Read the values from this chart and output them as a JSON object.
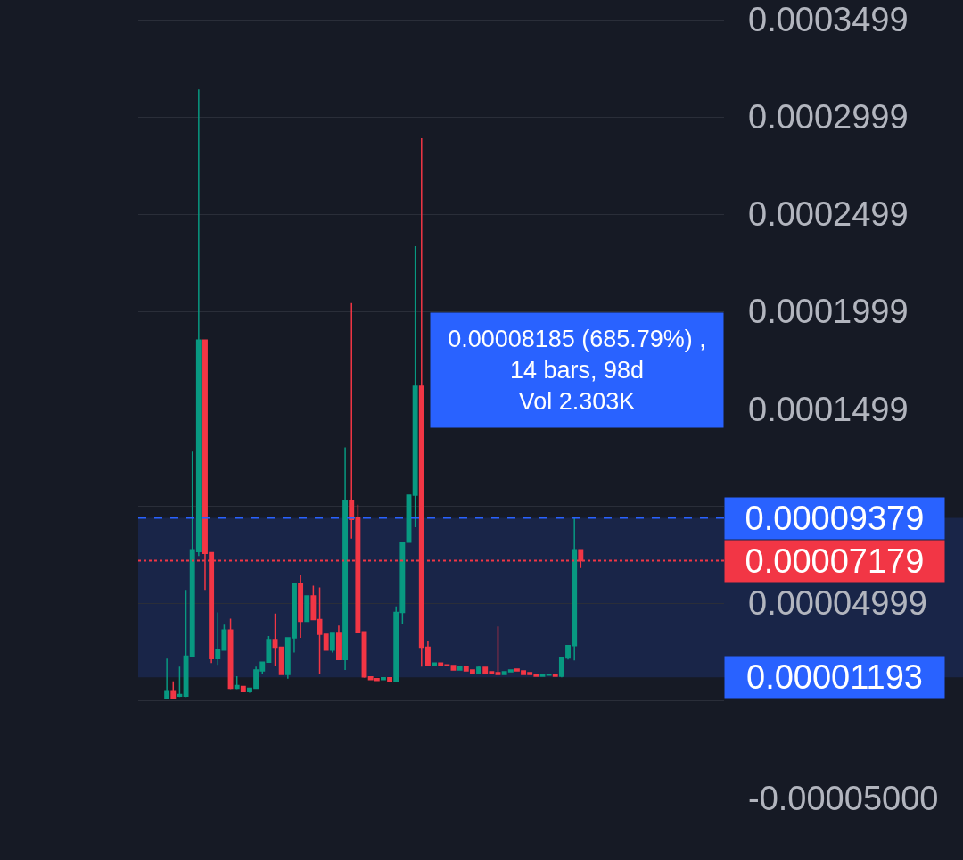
{
  "chart_data": {
    "type": "candlestick",
    "categories": [
      null,
      null,
      null,
      null,
      null,
      null,
      null,
      null,
      null,
      null,
      null,
      null,
      null,
      null,
      null,
      null,
      null,
      null,
      null,
      null,
      null,
      null,
      null,
      null,
      null,
      null,
      null,
      null,
      null,
      null,
      null,
      null,
      null,
      null,
      null,
      null,
      null,
      null,
      null,
      null,
      null,
      null,
      null,
      null,
      null,
      null,
      null,
      null,
      null,
      null,
      null,
      null,
      null,
      null,
      null,
      null,
      null,
      null,
      null,
      null,
      null,
      null,
      null,
      null,
      null,
      null,
      null,
      null,
      null,
      null,
      null,
      null,
      null,
      null,
      null,
      null,
      null,
      null,
      null,
      null,
      null,
      null,
      null,
      null,
      null,
      null,
      null,
      null,
      null,
      null,
      null,
      null
    ],
    "ohlc": [
      null,
      null,
      null,
      null,
      [
        1.3e-06,
        2.15e-05,
        9e-07,
        4.5e-06
      ],
      [
        4.5e-06,
        9.8e-06,
        9e-07,
        1.3e-06
      ],
      [
        2.2e-06,
        1.74e-05,
        1.8e-06,
        3.1e-06
      ],
      [
        2.2e-06,
        5.68e-05,
        1.8e-06,
        2.28e-05
      ],
      [
        2.28e-05,
        0.0001279,
        2.24e-05,
        7.74e-05
      ],
      [
        7.65e-05,
        0.000314,
        7.42e-05,
        0.0001852
      ],
      [
        0.0001852,
        0.0001852,
        5.68e-05,
        7.56e-05
      ],
      [
        7.6e-05,
        7.6e-05,
        1.92e-05,
        2.15e-05
      ],
      [
        2.15e-05,
        4.52e-05,
        1.83e-05,
        2.59e-05
      ],
      [
        2.59e-05,
        3.89e-05,
        2.55e-05,
        3.62e-05
      ],
      [
        3.62e-05,
        4.2e-05,
        5.8e-06,
        6.3e-06
      ],
      [
        6.3e-06,
        1.25e-05,
        5.8e-06,
        7.6e-06
      ],
      [
        7.2e-06,
        7.2e-06,
        4.5e-06,
        4.5e-06
      ],
      [
        4.5e-06,
        6.3e-06,
        4e-06,
        6.3e-06
      ],
      [
        6.3e-06,
        1.74e-05,
        6.3e-06,
        1.57e-05
      ],
      [
        1.52e-05,
        1.97e-05,
        1.34e-05,
        1.97e-05
      ],
      [
        1.97e-05,
        3.31e-05,
        1.97e-05,
        3.13e-05
      ],
      [
        3.13e-05,
        4.47e-05,
        1.79e-05,
        2.73e-05
      ],
      [
        2.73e-05,
        2.73e-05,
        1.34e-05,
        1.34e-05
      ],
      [
        1.34e-05,
        3.22e-05,
        1.12e-05,
        3.22e-05
      ],
      [
        3.22e-05,
        5.99e-05,
        2.46e-05,
        5.99e-05
      ],
      [
        5.99e-05,
        6.44e-05,
        3.22e-05,
        4.07e-05
      ],
      [
        4.07e-05,
        5.37e-05,
        4.07e-05,
        5.37e-05
      ],
      [
        5.37e-05,
        5.9e-05,
        4.16e-05,
        4.16e-05
      ],
      [
        4.16e-05,
        5.81e-05,
        1.34e-05,
        3.4e-05
      ],
      [
        3.4e-05,
        3.4e-05,
        2.59e-05,
        2.59e-05
      ],
      [
        2.59e-05,
        3.49e-05,
        2.46e-05,
        3.49e-05
      ],
      [
        3.49e-05,
        3.85e-05,
        2.1e-05,
        2.1e-05
      ],
      [
        2.1e-05,
        0.0001301,
        1.57e-05,
        0.0001024
      ],
      [
        0.0001024,
        0.0002042,
        8.32e-05,
        9.3e-05
      ],
      [
        9.39e-05,
        0.0001006,
        3.53e-05,
        3.53e-05
      ],
      [
        3.53e-05,
        3.53e-05,
        1.16e-05,
        1.21e-05
      ],
      [
        1.21e-05,
        1.21e-05,
        1.07e-05,
        1.07e-05
      ],
      [
        1.12e-05,
        1.12e-05,
        1.03e-05,
        1.03e-05
      ],
      [
        1.07e-05,
        1.16e-05,
        1.07e-05,
        1.16e-05
      ],
      [
        1.16e-05,
        1.16e-05,
        9.8e-06,
        9.8e-06
      ],
      [
        9.8e-06,
        4.83e-05,
        9.8e-06,
        4.52e-05
      ],
      [
        4.52e-05,
        8.14e-05,
        3.94e-05,
        8.14e-05
      ],
      [
        8.14e-05,
        0.0001055,
        8.14e-05,
        0.0001055
      ],
      [
        0.0001055,
        0.0002335,
        8.9e-05,
        0.0001615
      ],
      [
        0.0001615,
        0.0002889,
        1.74e-05,
        2.73e-05
      ],
      [
        2.73e-05,
        3.04e-05,
        1.79e-05,
        1.79e-05
      ],
      [
        1.83e-05,
        1.92e-05,
        1.83e-05,
        1.92e-05
      ],
      [
        1.92e-05,
        1.92e-05,
        1.83e-05,
        1.83e-05
      ],
      [
        1.83e-05,
        1.83e-05,
        1.79e-05,
        1.79e-05
      ],
      [
        1.79e-05,
        1.79e-05,
        1.57e-05,
        1.57e-05
      ],
      [
        1.57e-05,
        1.74e-05,
        1.57e-05,
        1.74e-05
      ],
      [
        1.74e-05,
        1.74e-05,
        1.52e-05,
        1.52e-05
      ],
      [
        1.57e-05,
        1.57e-05,
        1.39e-05,
        1.39e-05
      ],
      [
        1.39e-05,
        1.79e-05,
        1.39e-05,
        1.7e-05
      ],
      [
        1.7e-05,
        1.7e-05,
        1.39e-05,
        1.39e-05
      ],
      [
        1.48e-05,
        1.48e-05,
        1.39e-05,
        1.39e-05
      ],
      [
        1.43e-05,
        3.8e-05,
        1.34e-05,
        1.34e-05
      ],
      [
        1.34e-05,
        1.48e-05,
        1.34e-05,
        1.48e-05
      ],
      [
        1.48e-05,
        1.57e-05,
        1.48e-05,
        1.57e-05
      ],
      [
        1.61e-05,
        1.61e-05,
        1.52e-05,
        1.52e-05
      ],
      [
        1.52e-05,
        1.52e-05,
        1.34e-05,
        1.34e-05
      ],
      [
        1.43e-05,
        1.43e-05,
        1.34e-05,
        1.34e-05
      ],
      [
        1.34e-05,
        1.34e-05,
        1.25e-05,
        1.25e-05
      ],
      [
        1.25e-05,
        1.3e-05,
        1.25e-05,
        1.3e-05
      ],
      [
        1.3e-05,
        1.34e-05,
        1.3e-05,
        1.34e-05
      ],
      [
        1.34e-05,
        1.34e-05,
        1.21e-05,
        1.25e-05
      ],
      [
        1.25e-05,
        2.19e-05,
        1.19e-05,
        2.19e-05
      ],
      [
        2.19e-05,
        2.82e-05,
        2.1e-05,
        2.82e-05
      ],
      [
        2.82e-05,
        9.379e-05,
        2.06e-05,
        7.74e-05
      ],
      [
        7.74e-05,
        7.74e-05,
        6.8e-05,
        7.179e-05
      ],
      null,
      null,
      null,
      null,
      null,
      null,
      null,
      null,
      null,
      null,
      null,
      null,
      null,
      null,
      null,
      null,
      null,
      null,
      null,
      null,
      null,
      null
    ],
    "colors": [
      null,
      null,
      null,
      null,
      "#089981",
      "#f23645",
      "#089981",
      "#089981",
      "#089981",
      "#089981",
      "#f23645",
      "#f23645",
      "#089981",
      "#089981",
      "#f23645",
      "#089981",
      "#f23645",
      "#089981",
      "#089981",
      "#089981",
      "#089981",
      "#f23645",
      "#f23645",
      "#089981",
      "#089981",
      "#f23645",
      "#089981",
      "#f23645",
      "#f23645",
      "#f23645",
      "#089981",
      "#f23645",
      "#089981",
      "#f23645",
      "#f23645",
      "#f23645",
      "#f23645",
      "#f23645",
      "#089981",
      "#f23645",
      "#089981",
      "#089981",
      "#089981",
      "#089981",
      "#f23645",
      "#f23645",
      "#089981",
      "#f23645",
      "#f23645",
      "#f23645",
      "#089981",
      "#f23645",
      "#f23645",
      "#089981",
      "#f23645",
      "#f23645",
      "#f23645",
      "#089981",
      "#089981",
      "#f23645",
      "#f23645",
      "#f23645",
      "#f23645",
      "#089981",
      "#089981",
      "#f23645",
      "#089981",
      "#089981",
      "#089981",
      "#f23645",
      null,
      null,
      null,
      null,
      null,
      null,
      null,
      null,
      null,
      null,
      null,
      null,
      null,
      null,
      null,
      null,
      null,
      null,
      null,
      null,
      null,
      null
    ],
    "ylim": [
      -8.2e-05,
      0.00036
    ],
    "yticks": [
      {
        "value": -5e-05,
        "label": "-0.00005000"
      },
      {
        "value": 0,
        "label": null
      },
      {
        "value": 4.999e-05,
        "label": "0.00004999"
      },
      {
        "value": 9.99e-05,
        "label": null
      },
      {
        "value": 0.0001499,
        "label": "0.0001499"
      },
      {
        "value": 0.0001999,
        "label": "0.0001999"
      },
      {
        "value": 0.0002499,
        "label": "0.0002499"
      },
      {
        "value": 0.0002999,
        "label": "0.0002999"
      },
      {
        "value": 0.0003499,
        "label": "0.0003499"
      }
    ],
    "ref_lines": [
      {
        "axis": "y",
        "value": 9.379e-05,
        "label": "0.00009379",
        "color": "#2962ff",
        "line_style": "dashed"
      },
      {
        "axis": "y",
        "value": 7.179e-05,
        "label": "0.00007179",
        "color": "#f23645",
        "line_style": "dotted"
      }
    ],
    "bands": [
      {
        "axis": "y",
        "from": 1.193e-05,
        "to": 9.379e-05,
        "label": "0.00001193",
        "color": "#2962ff"
      }
    ],
    "annotations": [
      "0.00008185 (685.79%) ,\n14 bars, 98d\nVol 2.303K"
    ],
    "grid": "y",
    "tick_labels": "y"
  }
}
